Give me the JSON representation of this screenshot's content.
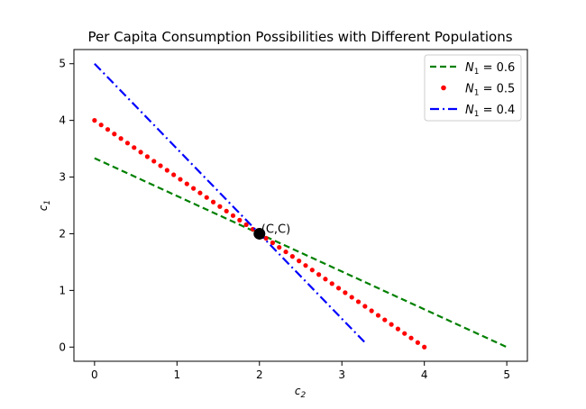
{
  "chart_data": {
    "type": "line",
    "title": "Per Capita Consumption Possibilities with Different Populations",
    "xlabel": "c2",
    "ylabel": "c1",
    "xlim": [
      -0.25,
      5.25
    ],
    "ylim": [
      -0.25,
      5.25
    ],
    "xticks": [
      0,
      1,
      2,
      3,
      4,
      5
    ],
    "yticks": [
      0,
      1,
      2,
      3,
      4,
      5
    ],
    "grid": false,
    "legend_position": "top-right",
    "series": [
      {
        "name": "N1 = 0.6",
        "name_base": "N",
        "name_sub": "1",
        "name_rest": " = 0.6",
        "color": "#008000",
        "style": "dashed",
        "x": [
          0,
          5.0
        ],
        "y": [
          3.333,
          0
        ]
      },
      {
        "name": "N1 = 0.5",
        "name_base": "N",
        "name_sub": "1",
        "name_rest": " = 0.5",
        "color": "#ff0000",
        "style": "dotted-markers",
        "x": [
          0,
          4.0
        ],
        "y": [
          4.0,
          0
        ]
      },
      {
        "name": "N1 = 0.4",
        "name_base": "N",
        "name_sub": "1",
        "name_rest": " = 0.4",
        "color": "#0000ff",
        "style": "dashdot",
        "x": [
          0,
          3.3
        ],
        "y": [
          5.0,
          0.05
        ]
      }
    ],
    "annotations": [
      {
        "text": "(C,C)",
        "x": 2,
        "y": 2,
        "marker": "black-dot"
      }
    ]
  }
}
